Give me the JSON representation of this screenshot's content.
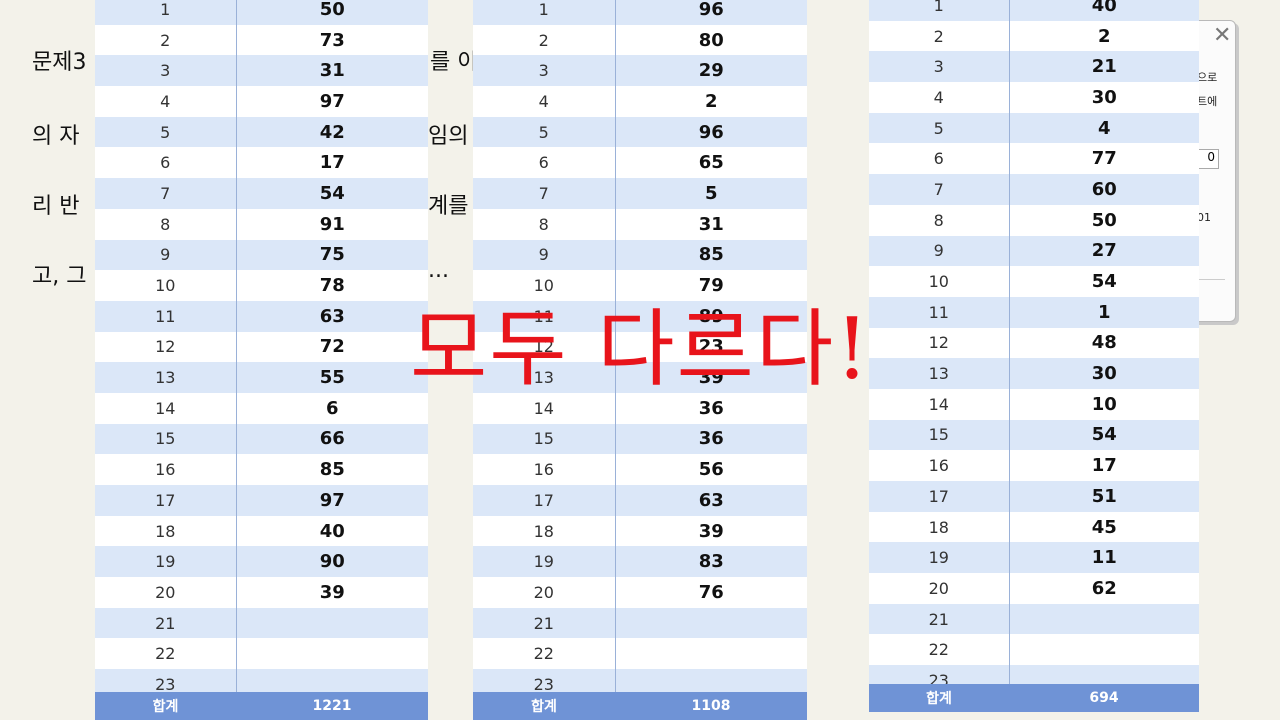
{
  "background_text": {
    "line1": "문제3",
    "line1_right": "를 이",
    "line2": "의 자",
    "line2_right": "임의",
    "line3": "리 반",
    "line3_right": "계를",
    "line4": "고, 그",
    "line4_right": "..."
  },
  "dialog": {
    "close_glyph": "✕",
    "text1": "으로",
    "text2": "트에",
    "field_value": "0",
    "text3": "01"
  },
  "tables": [
    {
      "rows": [
        {
          "n": "1",
          "v": "50"
        },
        {
          "n": "2",
          "v": "73"
        },
        {
          "n": "3",
          "v": "31"
        },
        {
          "n": "4",
          "v": "97"
        },
        {
          "n": "5",
          "v": "42"
        },
        {
          "n": "6",
          "v": "17"
        },
        {
          "n": "7",
          "v": "54"
        },
        {
          "n": "8",
          "v": "91"
        },
        {
          "n": "9",
          "v": "75"
        },
        {
          "n": "10",
          "v": "78"
        },
        {
          "n": "11",
          "v": "63"
        },
        {
          "n": "12",
          "v": "72"
        },
        {
          "n": "13",
          "v": "55"
        },
        {
          "n": "14",
          "v": "6"
        },
        {
          "n": "15",
          "v": "66"
        },
        {
          "n": "16",
          "v": "85"
        },
        {
          "n": "17",
          "v": "97"
        },
        {
          "n": "18",
          "v": "40"
        },
        {
          "n": "19",
          "v": "90"
        },
        {
          "n": "20",
          "v": "39"
        },
        {
          "n": "21",
          "v": ""
        },
        {
          "n": "22",
          "v": ""
        },
        {
          "n": "23",
          "v": ""
        }
      ],
      "footer_label": "합계",
      "footer_total": "1221"
    },
    {
      "rows": [
        {
          "n": "1",
          "v": "96"
        },
        {
          "n": "2",
          "v": "80"
        },
        {
          "n": "3",
          "v": "29"
        },
        {
          "n": "4",
          "v": "2"
        },
        {
          "n": "5",
          "v": "96"
        },
        {
          "n": "6",
          "v": "65"
        },
        {
          "n": "7",
          "v": "5"
        },
        {
          "n": "8",
          "v": "31"
        },
        {
          "n": "9",
          "v": "85"
        },
        {
          "n": "10",
          "v": "79"
        },
        {
          "n": "11",
          "v": "89"
        },
        {
          "n": "12",
          "v": "23"
        },
        {
          "n": "13",
          "v": "39"
        },
        {
          "n": "14",
          "v": "36"
        },
        {
          "n": "15",
          "v": "36"
        },
        {
          "n": "16",
          "v": "56"
        },
        {
          "n": "17",
          "v": "63"
        },
        {
          "n": "18",
          "v": "39"
        },
        {
          "n": "19",
          "v": "83"
        },
        {
          "n": "20",
          "v": "76"
        },
        {
          "n": "21",
          "v": ""
        },
        {
          "n": "22",
          "v": ""
        },
        {
          "n": "23",
          "v": ""
        }
      ],
      "footer_label": "합계",
      "footer_total": "1108"
    },
    {
      "rows": [
        {
          "n": "1",
          "v": "40"
        },
        {
          "n": "2",
          "v": "2"
        },
        {
          "n": "3",
          "v": "21"
        },
        {
          "n": "4",
          "v": "30"
        },
        {
          "n": "5",
          "v": "4"
        },
        {
          "n": "6",
          "v": "77"
        },
        {
          "n": "7",
          "v": "60"
        },
        {
          "n": "8",
          "v": "50"
        },
        {
          "n": "9",
          "v": "27"
        },
        {
          "n": "10",
          "v": "54"
        },
        {
          "n": "11",
          "v": "1"
        },
        {
          "n": "12",
          "v": "48"
        },
        {
          "n": "13",
          "v": "30"
        },
        {
          "n": "14",
          "v": "10"
        },
        {
          "n": "15",
          "v": "54"
        },
        {
          "n": "16",
          "v": "17"
        },
        {
          "n": "17",
          "v": "51"
        },
        {
          "n": "18",
          "v": "45"
        },
        {
          "n": "19",
          "v": "11"
        },
        {
          "n": "20",
          "v": "62"
        },
        {
          "n": "21",
          "v": ""
        },
        {
          "n": "22",
          "v": ""
        },
        {
          "n": "23",
          "v": ""
        }
      ],
      "footer_label": "합계",
      "footer_total": "694"
    }
  ],
  "overlay_text": "모두 다르다!",
  "colors": {
    "row_stripe": "#dbe7f8",
    "footer": "#6f93d6",
    "overlay": "#e8141b"
  }
}
